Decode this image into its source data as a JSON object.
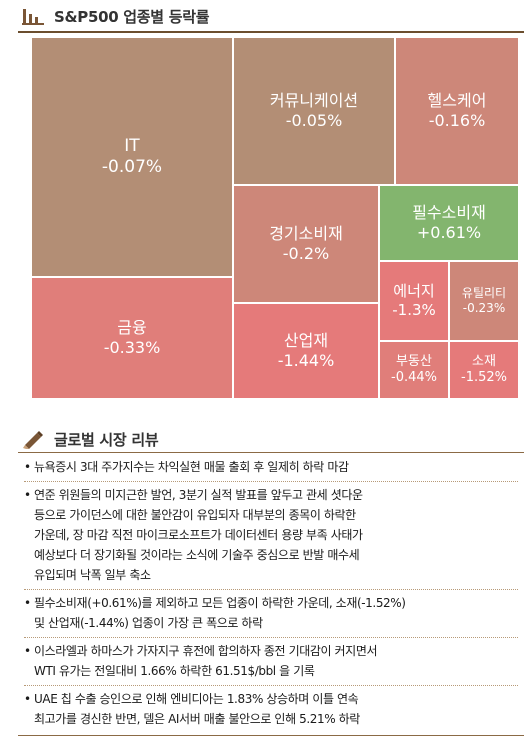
{
  "section1": {
    "title": "S&P500 업종별 등락률",
    "icon": "bar-chart-icon"
  },
  "sectors": [
    {
      "name": "IT",
      "change": "-0.07%",
      "color": "#b38e75"
    },
    {
      "name": "커뮤니케이션",
      "change": "-0.05%",
      "color": "#b38e75"
    },
    {
      "name": "헬스케어",
      "change": "-0.16%",
      "color": "#cd8779"
    },
    {
      "name": "경기소비재",
      "change": "-0.2%",
      "color": "#cd8779"
    },
    {
      "name": "필수소비재",
      "change": "+0.61%",
      "color": "#83b56e"
    },
    {
      "name": "금융",
      "change": "-0.33%",
      "color": "#e07e7a"
    },
    {
      "name": "산업재",
      "change": "-1.44%",
      "color": "#e57a7a"
    },
    {
      "name": "에너지",
      "change": "-1.3%",
      "color": "#e57a7a"
    },
    {
      "name": "유틸리티",
      "change": "-0.23%",
      "color": "#cd8779"
    },
    {
      "name": "부동산",
      "change": "-0.44%",
      "color": "#e07e7a"
    },
    {
      "name": "소재",
      "change": "-1.52%",
      "color": "#e57a7a"
    }
  ],
  "section2": {
    "title": "글로벌 시장 리뷰",
    "icon": "pencil-icon"
  },
  "bullet": "•",
  "news": [
    {
      "lines": [
        "뉴욕증시 3대 주가지수는 차익실현 매물 출회 후 일제히 하락 마감"
      ]
    },
    {
      "lines": [
        "연준 위원들의 미지근한 발언, 3분기 실적 발표를 앞두고 관세 셧다운",
        "등으로 가이던스에 대한 불안감이 유입되자 대부분의 종목이 하락한",
        "가운데, 장 마감 직전 마이크로소프트가 데이터센터 용량 부족 사태가",
        "예상보다 더 장기화될 것이라는 소식에 기술주 중심으로 반발 매수세",
        "유입되며 낙폭 일부 축소"
      ]
    },
    {
      "lines": [
        "필수소비재(+0.61%)를 제외하고 모든 업종이 하락한 가운데, 소재(-1.52%)",
        "및 산업재(-1.44%) 업종이 가장 큰 폭으로 하락"
      ]
    },
    {
      "lines": [
        "이스라엘과 하마스가 가자지구 휴전에 합의하자 종전 기대감이 커지면서",
        "WTI 유가는 전일대비 1.66% 하락한 61.51$/bbl 을 기록"
      ]
    },
    {
      "lines": [
        "UAE 칩 수출 승인으로 인해 엔비디아는 1.83% 상승하며 이틀 연속",
        "최고가를 경신한 반면, 델은 AI서버 매출 불안으로 인해 5.21% 하락"
      ]
    }
  ]
}
